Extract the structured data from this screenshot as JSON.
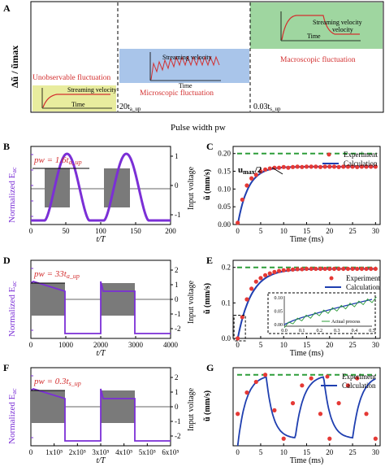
{
  "panelA": {
    "label": "A",
    "ylabel": "Δũ / ũmax",
    "xlabel": "Pulse width pw",
    "regions": [
      {
        "name": "Unobservable fluctuation",
        "inset_title": "Streaming velocity",
        "inset_xlabel": "Time",
        "color": "#e8ec9e"
      },
      {
        "name": "Microscopic fluctuation",
        "inset_title": "Streaming velocity",
        "inset_xlabel": "Time",
        "color": "#a9c5ea"
      },
      {
        "name": "Macroscopic fluctuation",
        "inset_title": "Streaming velocity",
        "inset_xlabel": "Time",
        "color": "#9fd6a0"
      }
    ],
    "boundaries": [
      "20t",
      "0.03t"
    ],
    "boundary_subs": [
      "a_up",
      "s_up"
    ]
  },
  "panelB": {
    "label": "B",
    "annotation": "pw = 1.6t",
    "annotation_sub": "a_up",
    "ylabel_left": "Normalized E",
    "ylabel_left_sub": "ac",
    "ylabel_right": "Input voltage",
    "xlabel": "t/T",
    "xticks": [
      "0",
      "50",
      "100",
      "150",
      "200"
    ],
    "yticks_right": [
      "1",
      "0",
      "-1"
    ]
  },
  "panelC": {
    "label": "C",
    "annotation": "u",
    "annotation_sub": "max",
    "annotation_tail": "/2",
    "ylabel": "ũ (mm/s)",
    "xlabel": "Time (ms)",
    "xticks": [
      "0",
      "5",
      "10",
      "15",
      "20",
      "25",
      "30"
    ],
    "yticks": [
      "0.20",
      "0.15",
      "0.10",
      "0.05",
      "0.00"
    ],
    "legend": [
      "Experiment",
      "Calculation"
    ]
  },
  "panelD": {
    "label": "D",
    "annotation": "pw = 33t",
    "annotation_sub": "a_up",
    "ylabel_left": "Normalized E",
    "ylabel_left_sub": "ac",
    "ylabel_right": "Input voltage",
    "xlabel": "t/T",
    "xticks": [
      "0",
      "1000",
      "2000",
      "3000",
      "4000"
    ],
    "yticks_right": [
      "2",
      "1",
      "0",
      "-1",
      "-2"
    ]
  },
  "panelE": {
    "label": "E",
    "ylabel": "ũ (mm/s)",
    "xlabel": "Time (ms)",
    "xticks": [
      "0",
      "5",
      "10",
      "15",
      "20",
      "25",
      "30"
    ],
    "yticks": [
      "0.2",
      "0.1",
      "0.0"
    ],
    "legend": [
      "Experiment",
      "Calculation"
    ],
    "inset_yticks": [
      "0.10",
      "0.05",
      "0.00"
    ],
    "inset_xticks": [
      "0.0",
      "0.1",
      "0.2",
      "0.3",
      "0.4",
      "0.5"
    ],
    "inset_legend": "Actual process"
  },
  "panelF": {
    "label": "F",
    "annotation": "pw = 0.3t",
    "annotation_sub": "s_up",
    "ylabel_left": "Normalized E",
    "ylabel_left_sub": "ac",
    "ylabel_right": "Input voltage",
    "xlabel": "t/T",
    "xticks": [
      "0",
      "1x10⁵",
      "2x10⁵",
      "3x10⁵",
      "4x10⁵",
      "5x10⁵",
      "6x10⁵"
    ],
    "yticks_right": [
      "2",
      "1",
      "0",
      "-1",
      "-2"
    ]
  },
  "panelG": {
    "label": "G",
    "ylabel": "ũ (mm/s)",
    "xlabel": "Time (ms)",
    "xticks": [
      "0",
      "5",
      "10",
      "15",
      "20",
      "25",
      "30"
    ],
    "legend": [
      "Experiment",
      "Calculation"
    ]
  },
  "chart_data": [
    {
      "type": "scatter",
      "panel": "C",
      "series": [
        {
          "name": "Experiment",
          "x": [
            0,
            1,
            2,
            3,
            4,
            5,
            6,
            7,
            8,
            9,
            10,
            11,
            12,
            13,
            14,
            15,
            16,
            17,
            18,
            19,
            20,
            21,
            22,
            23,
            24,
            25,
            26,
            27,
            28,
            29,
            30
          ],
          "y": [
            0.005,
            0.07,
            0.11,
            0.13,
            0.14,
            0.15,
            0.155,
            0.158,
            0.16,
            0.16,
            0.162,
            0.16,
            0.162,
            0.163,
            0.162,
            0.163,
            0.163,
            0.163,
            0.162,
            0.163,
            0.163,
            0.163,
            0.162,
            0.163,
            0.163,
            0.163,
            0.162,
            0.163,
            0.163,
            0.163,
            0.163
          ]
        },
        {
          "name": "Calculation",
          "type": "line"
        }
      ],
      "ylim": [
        0,
        0.22
      ],
      "xlim": [
        -1,
        31
      ]
    },
    {
      "type": "scatter",
      "panel": "E",
      "series": [
        {
          "name": "Experiment",
          "x": [
            0,
            1,
            2,
            3,
            4,
            5,
            6,
            7,
            8,
            9,
            10,
            11,
            12,
            13,
            14,
            15,
            16,
            17,
            18,
            19,
            20,
            21,
            22,
            23,
            24,
            25,
            26,
            27,
            28,
            29,
            30
          ],
          "y": [
            0.0,
            0.06,
            0.11,
            0.14,
            0.16,
            0.17,
            0.178,
            0.183,
            0.187,
            0.19,
            0.192,
            0.193,
            0.194,
            0.195,
            0.195,
            0.196,
            0.196,
            0.196,
            0.196,
            0.196,
            0.196,
            0.196,
            0.196,
            0.196,
            0.196,
            0.196,
            0.196,
            0.196,
            0.196,
            0.196,
            0.196
          ]
        },
        {
          "name": "Calculation",
          "type": "line"
        }
      ],
      "ylim": [
        0,
        0.22
      ],
      "xlim": [
        -1,
        31
      ]
    },
    {
      "type": "scatter",
      "panel": "G",
      "series": [
        {
          "name": "Experiment",
          "x": [
            0,
            2,
            4,
            6,
            8,
            10,
            12,
            14,
            16,
            18,
            20,
            22,
            24,
            26,
            28,
            30
          ],
          "y": [
            0.09,
            0.15,
            0.18,
            0.2,
            0.1,
            0.02,
            0.12,
            0.17,
            0.19,
            0.09,
            0.02,
            0.12,
            0.17,
            0.19,
            0.09,
            0.02
          ]
        },
        {
          "name": "Calculation",
          "type": "line"
        }
      ],
      "ylim": [
        0,
        0.22
      ],
      "xlim": [
        -1,
        31
      ]
    }
  ]
}
